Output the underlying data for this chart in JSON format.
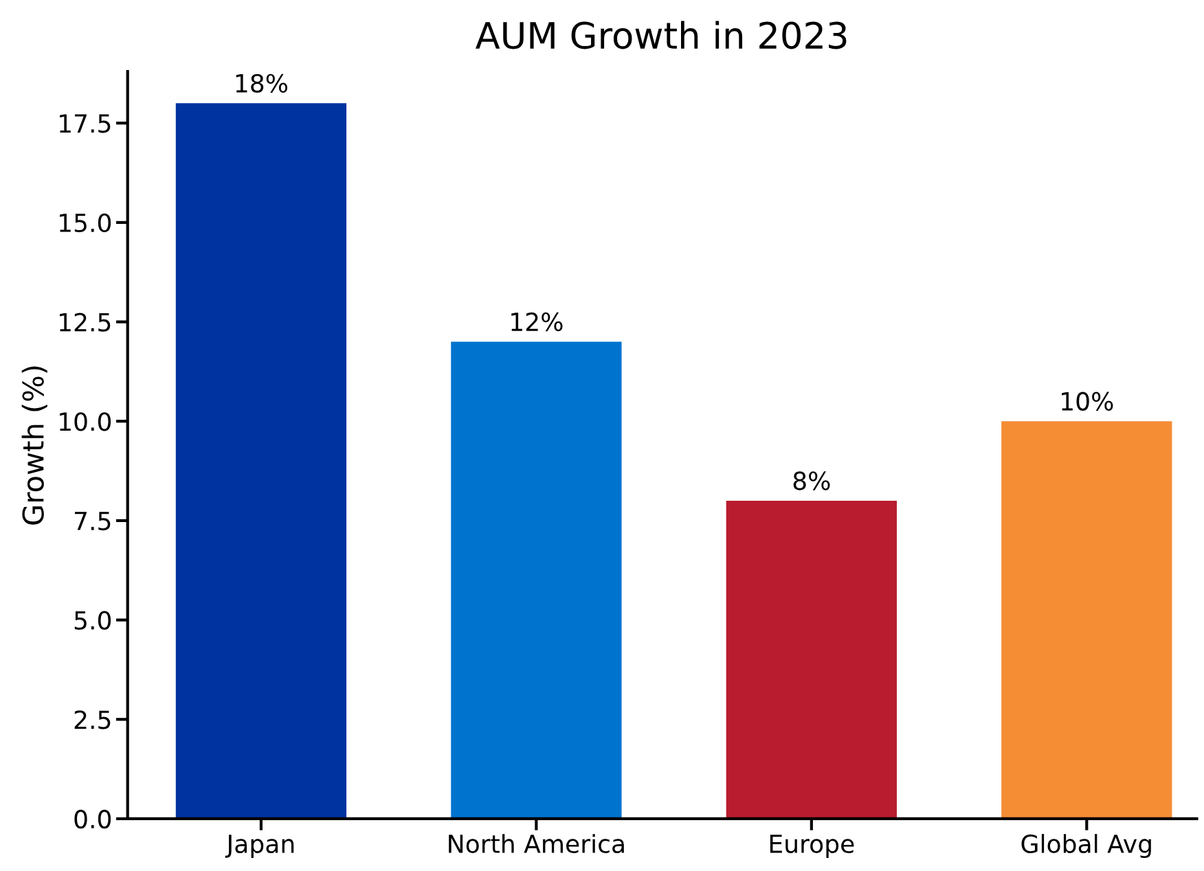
{
  "chart_data": {
    "type": "bar",
    "title": "AUM Growth in 2023",
    "ylabel": "Growth (%)",
    "categories": [
      "Japan",
      "North America",
      "Europe",
      "Global Avg"
    ],
    "values": [
      18,
      12,
      8,
      10
    ],
    "colors": [
      "#0033a0",
      "#0073cf",
      "#b81c2e",
      "#f58d35"
    ],
    "value_labels": [
      "18%",
      "12%",
      "8%",
      "10%"
    ],
    "ylim": [
      0,
      18.8
    ],
    "yticks": [
      {
        "value": 0,
        "label": "0.0"
      },
      2.5,
      {
        "value": 5,
        "label": "5.0"
      },
      7.5,
      {
        "value": 10,
        "label": "10.0"
      },
      12.5,
      {
        "value": 15,
        "label": "15.0"
      },
      17.5
    ],
    "grid": false
  }
}
